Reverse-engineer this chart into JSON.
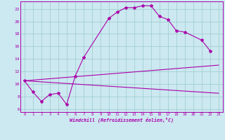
{
  "bg_color": "#cce8f0",
  "line_color": "#aa00aa",
  "grid_color": "#99cccc",
  "xlabel": "Windchill (Refroidissement éolien,°C)",
  "xlim": [
    -0.5,
    23.5
  ],
  "ylim": [
    5.5,
    23.2
  ],
  "xticks": [
    0,
    1,
    2,
    3,
    4,
    5,
    6,
    7,
    8,
    9,
    10,
    11,
    12,
    13,
    14,
    15,
    16,
    17,
    18,
    19,
    20,
    21,
    22,
    23
  ],
  "yticks": [
    6,
    8,
    10,
    12,
    14,
    16,
    18,
    20,
    22
  ],
  "main_curve_x": [
    0,
    1,
    2,
    3,
    4,
    5,
    6,
    7,
    10,
    11,
    12,
    13,
    14,
    15,
    16,
    17,
    18,
    19,
    21,
    22
  ],
  "main_curve_y": [
    10.5,
    8.7,
    7.2,
    8.3,
    8.5,
    6.7,
    11.2,
    14.2,
    20.5,
    21.5,
    22.2,
    22.2,
    22.5,
    22.5,
    20.8,
    20.3,
    18.5,
    18.3,
    17.0,
    15.3
  ],
  "upper_line_x": [
    0,
    23
  ],
  "upper_line_y": [
    10.5,
    13.0
  ],
  "lower_line_x": [
    0,
    23
  ],
  "lower_line_y": [
    10.5,
    8.5
  ]
}
